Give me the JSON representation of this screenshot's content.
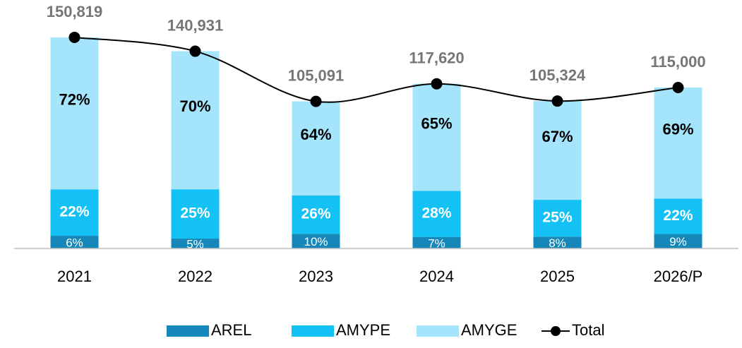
{
  "chart_data": {
    "type": "bar",
    "categories": [
      "2021",
      "2022",
      "2023",
      "2024",
      "2025",
      "2026/P"
    ],
    "ylim": [
      0,
      175000
    ],
    "series": [
      {
        "name": "AREL",
        "color": "#1687b9",
        "values": [
          6,
          5,
          10,
          7,
          8,
          9
        ],
        "value_labels": [
          "6%",
          "5%",
          "10%",
          "7%",
          "8%",
          "9%"
        ]
      },
      {
        "name": "AMYPE",
        "color": "#14c1f4",
        "values": [
          22,
          25,
          26,
          28,
          25,
          22
        ],
        "value_labels": [
          "22%",
          "25%",
          "26%",
          "28%",
          "25%",
          "22%"
        ]
      },
      {
        "name": "AMYGE",
        "color": "#a4e5fb",
        "values": [
          72,
          70,
          64,
          65,
          67,
          69
        ],
        "value_labels": [
          "72%",
          "70%",
          "64%",
          "65%",
          "67%",
          "69%"
        ]
      },
      {
        "name": "Total",
        "type": "line",
        "color": "#000000",
        "values": [
          150819,
          140931,
          105091,
          117620,
          105324,
          115000
        ],
        "value_labels": [
          "150,819",
          "140,931",
          "105,091",
          "117,620",
          "105,324",
          "115,000"
        ]
      }
    ]
  }
}
